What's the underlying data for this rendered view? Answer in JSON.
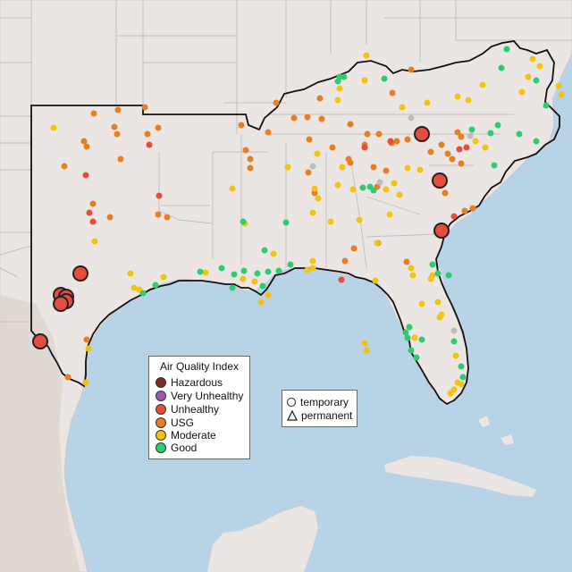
{
  "legend": {
    "title": "Air Quality Index",
    "categories": [
      {
        "label": "Hazardous",
        "color": "#7e2b24"
      },
      {
        "label": "Very Unhealthy",
        "color": "#9b59b6"
      },
      {
        "label": "Unhealthy",
        "color": "#e74c3c"
      },
      {
        "label": "USG",
        "color": "#e67e22"
      },
      {
        "label": "Moderate",
        "color": "#f1c40f"
      },
      {
        "label": "Good",
        "color": "#2ecc71"
      }
    ],
    "monitor_types": {
      "temporary": "temporary",
      "permanent": "permanent"
    }
  },
  "map_colors": {
    "water": "#b9d3e6",
    "land": "#ebe6e3",
    "state_lines": "#c4bfbc",
    "region_border": "#111111",
    "mexico_terrain": "#dcd3cb",
    "nodata": "#bdbdbd"
  },
  "monitors": {
    "large_unhealthy_sites": 9,
    "small_site_icon": "circle",
    "large_site_icon": "circle"
  }
}
